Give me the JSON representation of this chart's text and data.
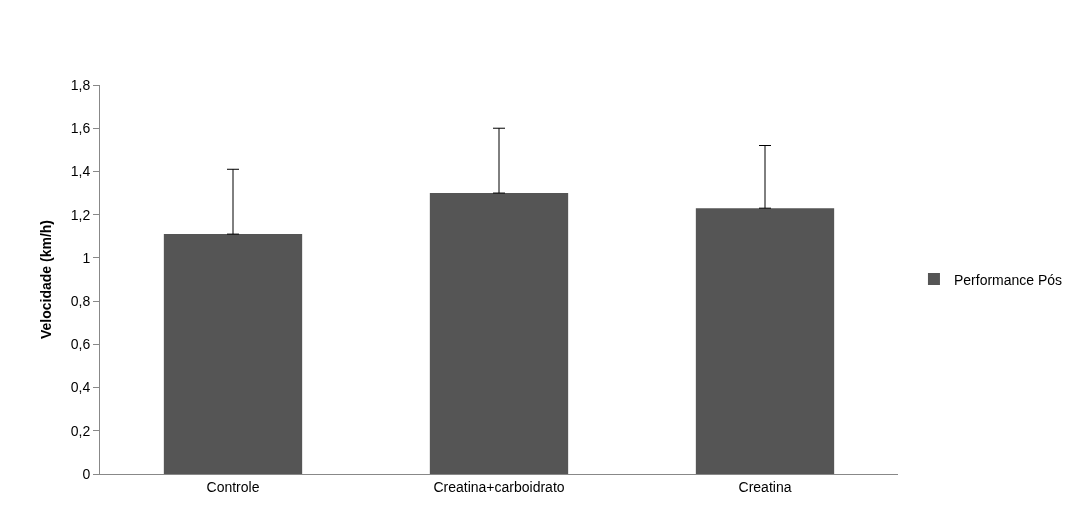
{
  "chart_data": {
    "type": "bar",
    "ylabel": "Velocidade (km/h)",
    "categories": [
      "Controle",
      "Creatina+carboidrato",
      "Creatina"
    ],
    "series": [
      {
        "name": "Performance Pós",
        "color": "#555555",
        "values": [
          1.11,
          1.3,
          1.23
        ],
        "errors": [
          [
            1.11,
            1.41
          ],
          [
            1.3,
            1.6
          ],
          [
            1.23,
            1.52
          ]
        ]
      }
    ],
    "ylim": [
      0,
      1.8
    ],
    "yticks": [
      0,
      {
        "value": 0.2,
        "label": "0,2"
      },
      {
        "value": 0.4,
        "label": "0,4"
      },
      {
        "value": 0.6,
        "label": "0,6"
      },
      {
        "value": 0.8,
        "label": "0,8"
      },
      1,
      {
        "value": 1.2,
        "label": "1,2"
      },
      {
        "value": 1.4,
        "label": "1,4"
      },
      {
        "value": 1.6,
        "label": "1,6"
      },
      {
        "value": 1.8,
        "label": "1,8"
      }
    ],
    "grid": false,
    "legend": "right"
  }
}
